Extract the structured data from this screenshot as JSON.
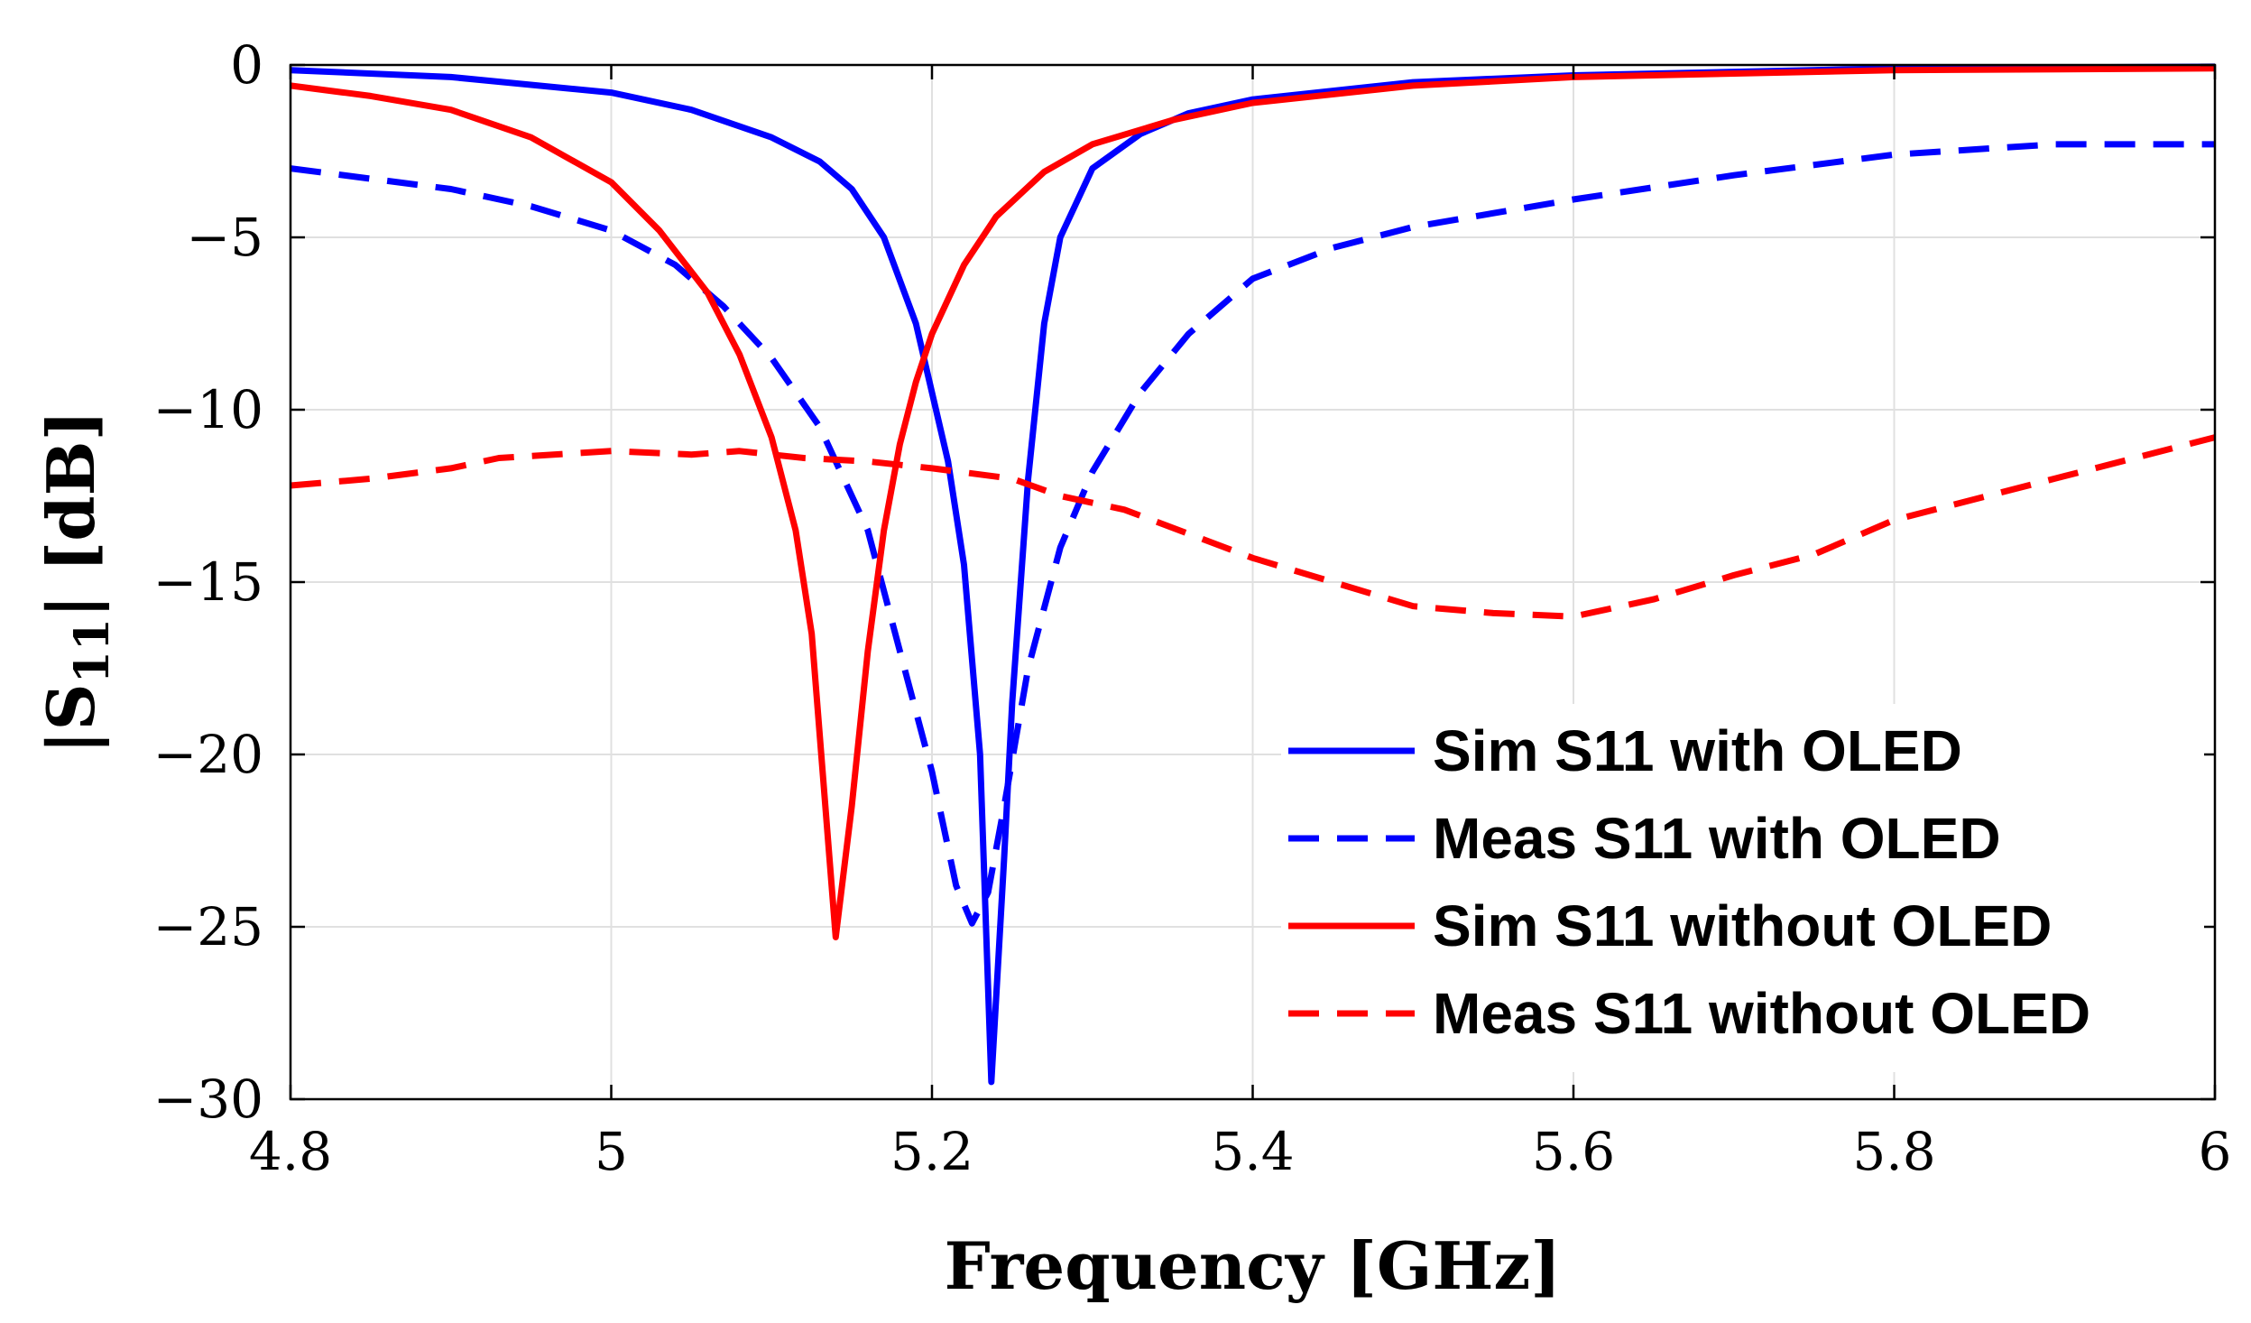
{
  "chart_data": {
    "type": "line",
    "title": "",
    "xlabel": "Frequency [GHz]",
    "ylabel": "|S11| [dB]",
    "ylabel_parts": {
      "pre": "|S",
      "sub": "11",
      "post": "| [dB]"
    },
    "xlim": [
      4.8,
      6.0
    ],
    "ylim": [
      -30,
      0
    ],
    "xticks": [
      4.8,
      5.0,
      5.2,
      5.4,
      5.6,
      5.8,
      6.0
    ],
    "xtick_labels": [
      "4.8",
      "5",
      "5.2",
      "5.4",
      "5.6",
      "5.8",
      "6"
    ],
    "yticks": [
      0,
      -5,
      -10,
      -15,
      -20,
      -25,
      -30
    ],
    "ytick_labels": [
      "0",
      "−5",
      "−10",
      "−15",
      "−20",
      "−25",
      "−30"
    ],
    "grid": true,
    "legend_position": "bottom-right",
    "series": [
      {
        "name": "Sim S11 with OLED",
        "color": "#0000ff",
        "dash": "solid",
        "x": [
          4.8,
          4.9,
          5.0,
          5.05,
          5.1,
          5.13,
          5.15,
          5.17,
          5.19,
          5.2,
          5.21,
          5.22,
          5.23,
          5.237,
          5.245,
          5.25,
          5.26,
          5.27,
          5.28,
          5.3,
          5.33,
          5.36,
          5.4,
          5.5,
          5.6,
          5.8,
          6.0
        ],
        "y": [
          -0.15,
          -0.35,
          -0.8,
          -1.3,
          -2.1,
          -2.8,
          -3.6,
          -5.0,
          -7.5,
          -9.5,
          -11.5,
          -14.5,
          -20.0,
          -29.5,
          -23.0,
          -18.5,
          -12.0,
          -7.5,
          -5.0,
          -3.0,
          -2.0,
          -1.4,
          -1.0,
          -0.5,
          -0.3,
          -0.1,
          -0.05
        ]
      },
      {
        "name": "Meas S11 with OLED",
        "color": "#0000ff",
        "dash": "dashed",
        "x": [
          4.8,
          4.9,
          4.95,
          5.0,
          5.04,
          5.07,
          5.1,
          5.13,
          5.16,
          5.18,
          5.2,
          5.215,
          5.225,
          5.235,
          5.245,
          5.26,
          5.28,
          5.3,
          5.33,
          5.36,
          5.4,
          5.45,
          5.5,
          5.6,
          5.7,
          5.8,
          5.9,
          6.0
        ],
        "y": [
          -3.0,
          -3.6,
          -4.1,
          -4.8,
          -5.8,
          -7.0,
          -8.5,
          -10.5,
          -13.5,
          -17.0,
          -20.5,
          -23.8,
          -24.9,
          -24.0,
          -21.5,
          -17.5,
          -14.0,
          -11.8,
          -9.5,
          -7.8,
          -6.2,
          -5.3,
          -4.7,
          -3.9,
          -3.2,
          -2.6,
          -2.3,
          -2.3
        ]
      },
      {
        "name": "Sim S11 without OLED",
        "color": "#ff0000",
        "dash": "solid",
        "x": [
          4.8,
          4.85,
          4.9,
          4.95,
          5.0,
          5.03,
          5.06,
          5.08,
          5.1,
          5.115,
          5.125,
          5.14,
          5.15,
          5.16,
          5.17,
          5.18,
          5.19,
          5.2,
          5.22,
          5.24,
          5.27,
          5.3,
          5.35,
          5.4,
          5.5,
          5.6,
          5.8,
          6.0
        ],
        "y": [
          -0.6,
          -0.9,
          -1.3,
          -2.1,
          -3.4,
          -4.8,
          -6.6,
          -8.4,
          -10.8,
          -13.5,
          -16.5,
          -25.3,
          -21.5,
          -17.0,
          -13.5,
          -11.0,
          -9.2,
          -7.8,
          -5.8,
          -4.4,
          -3.1,
          -2.3,
          -1.6,
          -1.1,
          -0.6,
          -0.35,
          -0.15,
          -0.1
        ]
      },
      {
        "name": "Meas S11 without OLED",
        "color": "#ff0000",
        "dash": "dashed",
        "x": [
          4.8,
          4.85,
          4.9,
          4.93,
          5.0,
          5.05,
          5.08,
          5.12,
          5.16,
          5.2,
          5.25,
          5.28,
          5.32,
          5.36,
          5.4,
          5.45,
          5.5,
          5.55,
          5.6,
          5.65,
          5.7,
          5.75,
          5.8,
          5.9,
          6.0
        ],
        "y": [
          -12.2,
          -12.0,
          -11.7,
          -11.4,
          -11.2,
          -11.3,
          -11.2,
          -11.4,
          -11.5,
          -11.7,
          -12.0,
          -12.5,
          -12.9,
          -13.6,
          -14.3,
          -15.0,
          -15.7,
          -15.9,
          -16.0,
          -15.5,
          -14.8,
          -14.2,
          -13.2,
          -12.0,
          -10.8
        ]
      }
    ]
  }
}
